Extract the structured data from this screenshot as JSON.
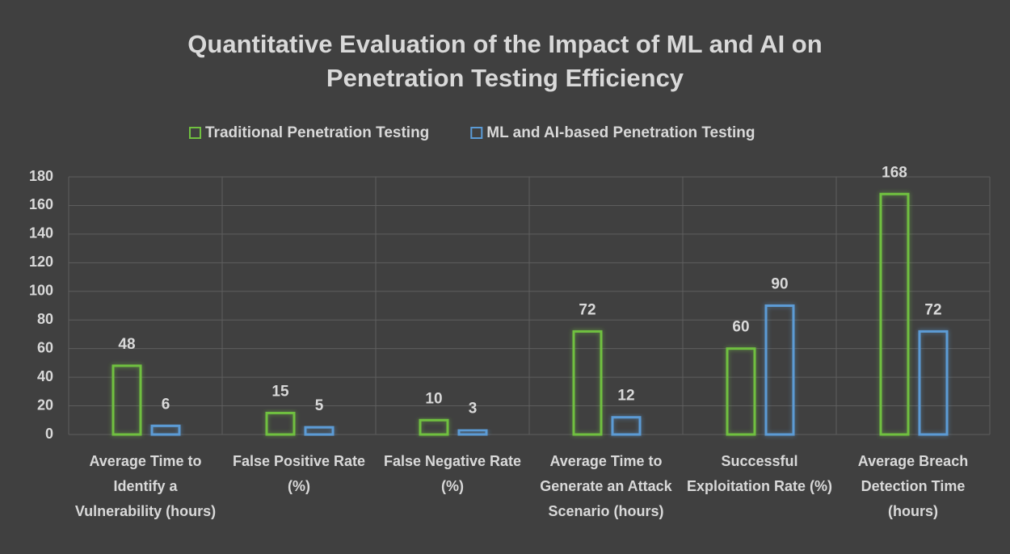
{
  "chart_data": {
    "type": "bar",
    "title": "Quantitative Evaluation of the Impact of ML and AI on Penetration Testing Efficiency",
    "categories": [
      "Average Time to Identify a Vulnerability (hours)",
      "False Positive Rate (%)",
      "False Negative Rate (%)",
      "Average Time to Generate an Attack Scenario (hours)",
      "Successful Exploitation Rate (%)",
      "Average Breach Detection Time (hours)"
    ],
    "series": [
      {
        "name": "Traditional Penetration Testing",
        "color": "#70c040",
        "values": [
          48,
          15,
          10,
          72,
          60,
          168
        ]
      },
      {
        "name": "ML and AI-based Penetration Testing",
        "color": "#5b9bd5",
        "values": [
          6,
          5,
          3,
          12,
          90,
          72
        ]
      }
    ],
    "ylim": [
      0,
      180
    ],
    "yticks": [
      0,
      20,
      40,
      60,
      80,
      100,
      120,
      140,
      160,
      180
    ],
    "grid": true,
    "legend": "top"
  }
}
